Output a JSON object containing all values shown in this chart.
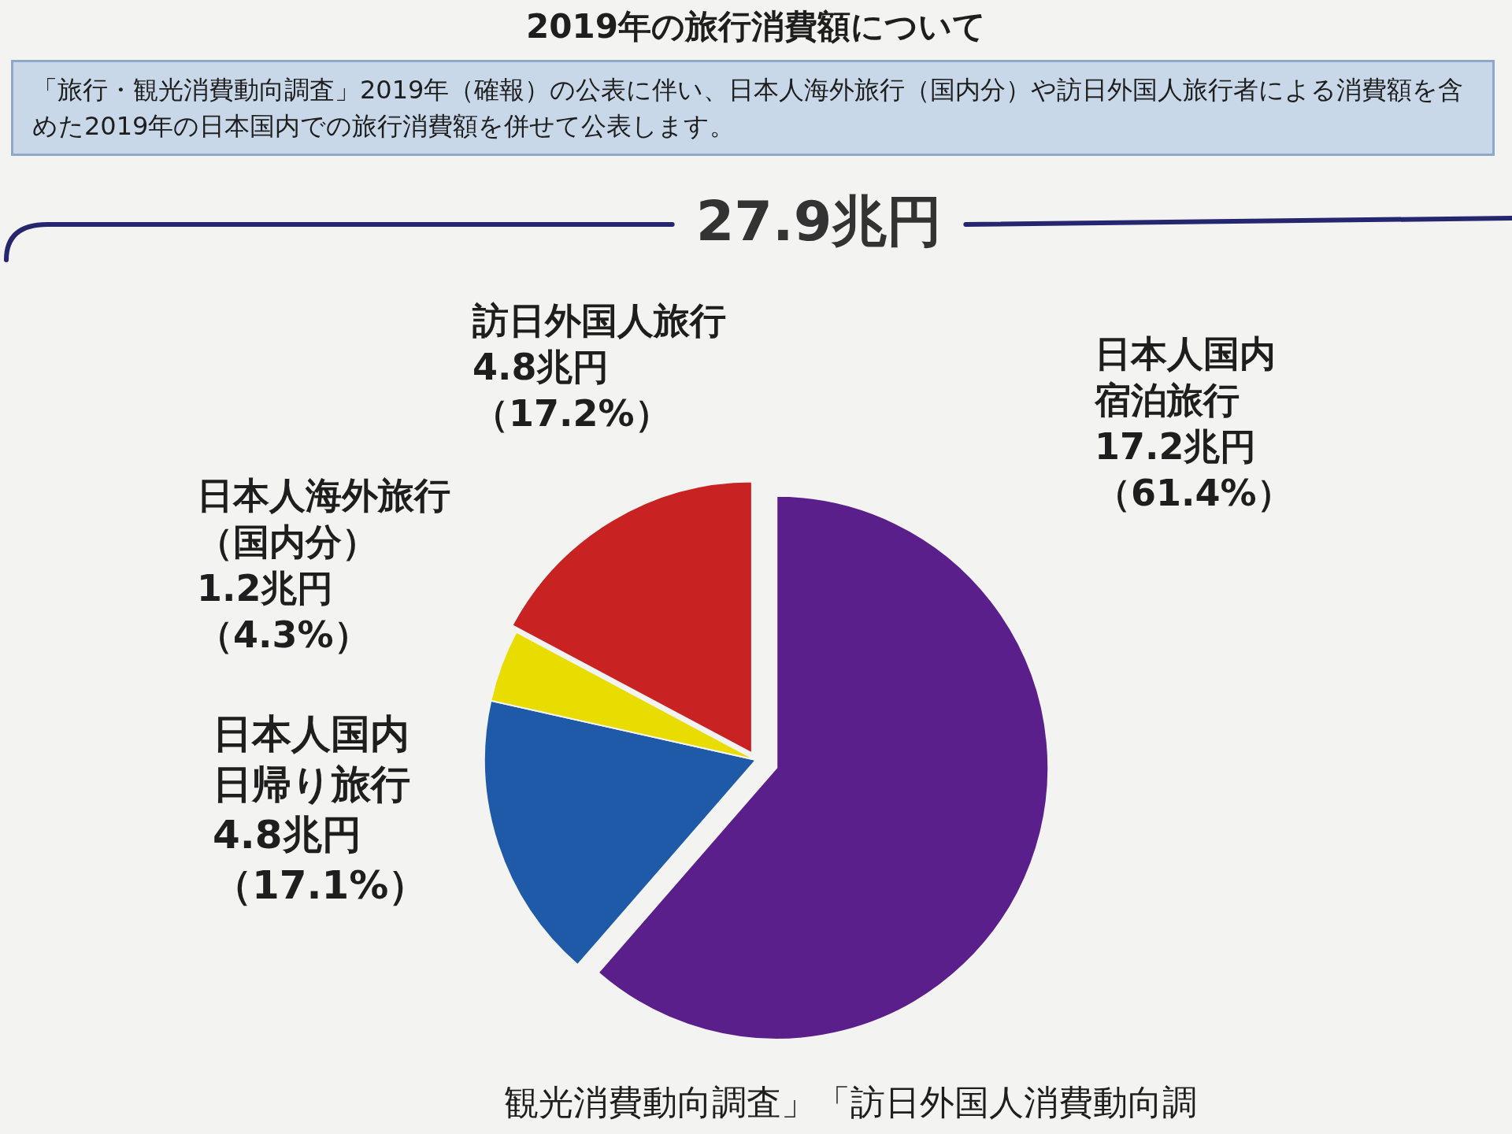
{
  "chart_data": {
    "type": "pie",
    "title": "2019年の旅行消費額について",
    "subtitle": "「旅行・観光消費動向調査」2019年（確報）の公表に伴い、日本人海外旅行（国内分）や訪日外国人旅行者による消費額を含めた2019年の日本国内での旅行消費額を併せて公表します。",
    "categories": [
      "日本人国内宿泊旅行",
      "日本人国内日帰り旅行",
      "日本人海外旅行（国内分）",
      "訪日外国人旅行"
    ],
    "values": [
      61.4,
      17.1,
      4.3,
      17.2
    ],
    "colors": [
      "#5b1f8c",
      "#1f5aa8",
      "#e8dc00",
      "#c92222"
    ],
    "value_labels": [
      "17.2兆円（61.4%）",
      "4.8兆円（17.1%）",
      "1.2兆円（4.3%）",
      "4.8兆円（17.2%）"
    ],
    "annotations": [
      "27.9兆円",
      "観光消費動向調査」「訪日外国人消費動向調"
    ]
  }
}
